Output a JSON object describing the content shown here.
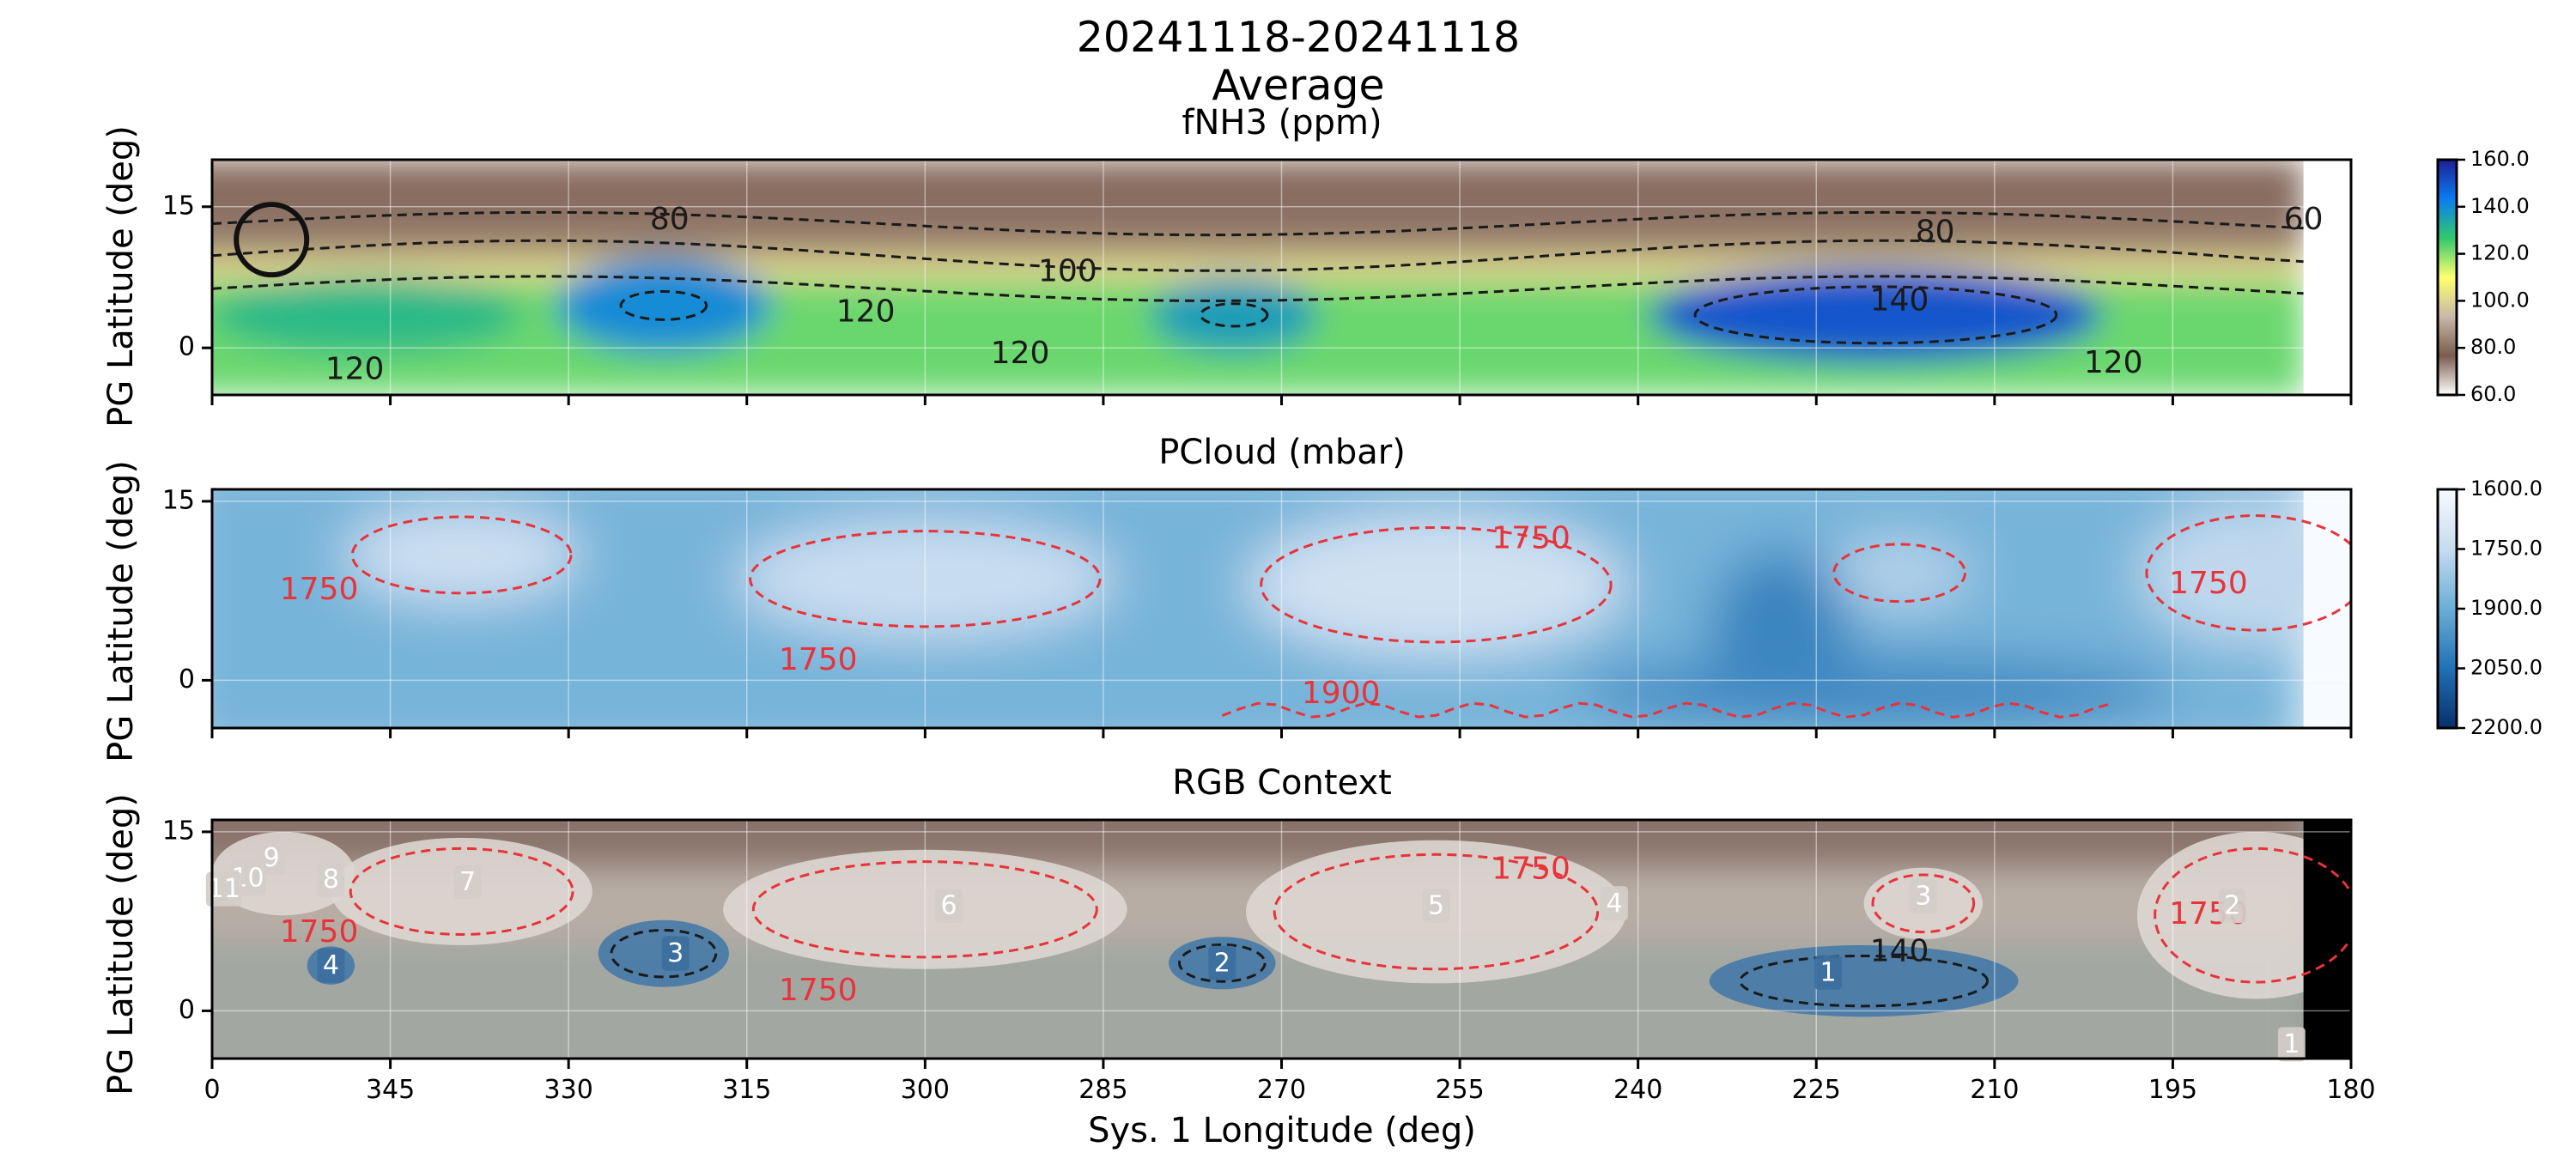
{
  "figure": {
    "suptitle_line1": "20241118-20241118",
    "suptitle_line2": "Average"
  },
  "chart_data": [
    {
      "type": "heatmap",
      "title": "fNH3 (ppm)",
      "xlabel": "",
      "ylabel": "PG Latitude (deg)",
      "xlim": [
        360,
        180
      ],
      "ylim": [
        -5,
        20
      ],
      "yticks": [
        {
          "value": 15,
          "label": "15"
        },
        {
          "value": 0,
          "label": "0"
        }
      ],
      "data_xmax_lon": 184,
      "grid": true,
      "cmap_stops": [
        "#ffffff",
        "#7a5c4d",
        "#c9b8a8",
        "#ffff6e",
        "#32c86e",
        "#0a7cf0",
        "#1e1e96"
      ],
      "colorbar": {
        "vmin": 60,
        "vmax": 160,
        "ticks": [
          "160.0",
          "140.0",
          "120.0",
          "100.0",
          "80.0",
          "60.0"
        ]
      },
      "bands": [
        {
          "lat_min": 14,
          "lat_max": 20,
          "value": 75
        },
        {
          "lat_min": 10,
          "lat_max": 14,
          "value": 82
        },
        {
          "lat_min": 7,
          "lat_max": 10,
          "value": 100
        },
        {
          "lat_min": -5,
          "lat_max": 7,
          "value": 122
        }
      ],
      "blobs": [
        {
          "lon": 322,
          "lat": 4.5,
          "r_lon": 9,
          "r_lat": 5,
          "value": 140
        },
        {
          "lon": 274,
          "lat": 3.5,
          "r_lon": 7,
          "r_lat": 4,
          "value": 136
        },
        {
          "lon": 220,
          "lat": 3.5,
          "r_lon": 19,
          "r_lat": 5,
          "value": 150
        },
        {
          "lon": 347,
          "lat": 3.5,
          "r_lon": 13,
          "r_lat": 4,
          "value": 130
        }
      ],
      "contour_labels": [
        {
          "text": "80",
          "lon": 321.5,
          "lat": 13.5,
          "color": "#1a1a1a"
        },
        {
          "text": "80",
          "lon": 215,
          "lat": 12.2,
          "color": "#1a1a1a"
        },
        {
          "text": "60",
          "lon": 184,
          "lat": 13.5,
          "color": "#1a1a1a"
        },
        {
          "text": "100",
          "lon": 288,
          "lat": 8,
          "color": "#1a1a1a"
        },
        {
          "text": "120",
          "lon": 305,
          "lat": 3.7,
          "color": "#1a1a1a"
        },
        {
          "text": "140",
          "lon": 218,
          "lat": 4.9,
          "color": "#1a1a1a"
        },
        {
          "text": "120",
          "lon": 292,
          "lat": -0.7,
          "color": "#1a1a1a"
        },
        {
          "text": "120",
          "lon": 348,
          "lat": -2.4,
          "color": "#1a1a1a"
        },
        {
          "text": "120",
          "lon": 200,
          "lat": -1.7,
          "color": "#1a1a1a"
        }
      ],
      "annotation": "circle near lon 355, lat 11.5"
    },
    {
      "type": "heatmap",
      "title": "PCloud (mbar)",
      "xlabel": "",
      "ylabel": "PG Latitude (deg)",
      "xlim": [
        360,
        180
      ],
      "ylim": [
        -4,
        16
      ],
      "yticks": [
        {
          "value": 15,
          "label": "15"
        },
        {
          "value": 0,
          "label": "0"
        }
      ],
      "data_xmax_lon": 184,
      "grid": true,
      "cmap_stops": [
        "#f7fbff",
        "#c6dbef",
        "#6baed6",
        "#2171b5",
        "#08306b"
      ],
      "colorbar": {
        "vmin": 1600,
        "vmax": 2200,
        "ticks": [
          "1600.0",
          "1750.0",
          "1900.0",
          "2050.0",
          "2200.0"
        ]
      },
      "background_value": 1880,
      "blobs": [
        {
          "lon": 339,
          "lat": 10.5,
          "r_lon": 10,
          "r_lat": 4,
          "value": 1730
        },
        {
          "lon": 300,
          "lat": 8.5,
          "r_lon": 16,
          "r_lat": 5,
          "value": 1740
        },
        {
          "lon": 257,
          "lat": 8,
          "r_lon": 16,
          "r_lat": 6,
          "value": 1720
        },
        {
          "lon": 188,
          "lat": 9,
          "r_lon": 10,
          "r_lat": 6,
          "value": 1760
        },
        {
          "lon": 218,
          "lat": 9,
          "r_lon": 6,
          "r_lat": 3,
          "value": 1780
        },
        {
          "lon": 228,
          "lat": 4,
          "r_lon": 6,
          "r_lat": 7,
          "value": 2000
        },
        {
          "lon": 220,
          "lat": -1,
          "r_lon": 25,
          "r_lat": 3,
          "value": 1990
        }
      ],
      "contour_labels": [
        {
          "text": "1750",
          "lon": 351,
          "lat": 7.5,
          "color": "#e8333a"
        },
        {
          "text": "1750",
          "lon": 309,
          "lat": 1.6,
          "color": "#e8333a"
        },
        {
          "text": "1750",
          "lon": 249,
          "lat": 11.8,
          "color": "#e8333a"
        },
        {
          "text": "1750",
          "lon": 192,
          "lat": 8,
          "color": "#e8333a"
        },
        {
          "text": "1900",
          "lon": 265,
          "lat": -1.2,
          "color": "#e8333a"
        }
      ]
    },
    {
      "type": "heatmap",
      "title": "RGB Context",
      "xlabel": "Sys. 1 Longitude (deg)",
      "ylabel": "PG Latitude (deg)",
      "xlim": [
        360,
        180
      ],
      "ylim": [
        -4,
        16
      ],
      "xticks": [
        "0",
        "345",
        "330",
        "315",
        "300",
        "285",
        "270",
        "255",
        "240",
        "225",
        "210",
        "195",
        "180"
      ],
      "yticks": [
        {
          "value": 15,
          "label": "15"
        },
        {
          "value": 0,
          "label": "0"
        }
      ],
      "data_xmax_lon": 184,
      "grid": true,
      "contour_labels": [
        {
          "text": "1750",
          "lon": 351,
          "lat": 6.5,
          "color": "#e8333a"
        },
        {
          "text": "1750",
          "lon": 309,
          "lat": 1.6,
          "color": "#e8333a"
        },
        {
          "text": "1750",
          "lon": 249,
          "lat": 11.8,
          "color": "#e8333a"
        },
        {
          "text": "1750",
          "lon": 192,
          "lat": 8,
          "color": "#e8333a"
        },
        {
          "text": "140",
          "lon": 218,
          "lat": 4.9,
          "color": "#1a1a1a"
        }
      ],
      "markers": [
        {
          "label": "1",
          "lon": 224,
          "lat": 3.2,
          "kind": "blue"
        },
        {
          "label": "2",
          "lon": 275,
          "lat": 4,
          "kind": "blue"
        },
        {
          "label": "3",
          "lon": 321,
          "lat": 4.8,
          "kind": "blue"
        },
        {
          "label": "4",
          "lon": 350,
          "lat": 3.8,
          "kind": "blue"
        },
        {
          "label": "5",
          "lon": 257,
          "lat": 8.8,
          "kind": "white"
        },
        {
          "label": "6",
          "lon": 298,
          "lat": 8.8,
          "kind": "white"
        },
        {
          "label": "7",
          "lon": 338.5,
          "lat": 10.8,
          "kind": "white"
        },
        {
          "label": "8",
          "lon": 350,
          "lat": 11,
          "kind": "white"
        },
        {
          "label": "9",
          "lon": 355,
          "lat": 12.8,
          "kind": "white"
        },
        {
          "label": "10",
          "lon": 357,
          "lat": 11.1,
          "kind": "white"
        },
        {
          "label": "11",
          "lon": 359,
          "lat": 10.2,
          "kind": "white"
        },
        {
          "label": "4",
          "lon": 242,
          "lat": 9.0,
          "kind": "white"
        },
        {
          "label": "3",
          "lon": 216,
          "lat": 9.6,
          "kind": "white"
        },
        {
          "label": "2",
          "lon": 190,
          "lat": 8.8,
          "kind": "white"
        },
        {
          "label": "1",
          "lon": 185,
          "lat": -2.8,
          "kind": "white"
        }
      ],
      "blue_patches": [
        {
          "lon": 221,
          "lat": 2.5,
          "r_lon": 13,
          "r_lat": 3
        },
        {
          "lon": 275,
          "lat": 4,
          "r_lon": 4.5,
          "r_lat": 2.2
        },
        {
          "lon": 322,
          "lat": 4.8,
          "r_lon": 5.5,
          "r_lat": 2.8
        },
        {
          "lon": 350,
          "lat": 3.8,
          "r_lon": 2,
          "r_lat": 1.6
        }
      ],
      "white_patches": [
        {
          "lon": 339,
          "lat": 10,
          "r_lon": 11,
          "r_lat": 4.5
        },
        {
          "lon": 300,
          "lat": 8.5,
          "r_lon": 17,
          "r_lat": 5
        },
        {
          "lon": 257,
          "lat": 8.3,
          "r_lon": 16,
          "r_lat": 6
        },
        {
          "lon": 188,
          "lat": 8,
          "r_lon": 10,
          "r_lat": 7
        },
        {
          "lon": 216,
          "lat": 9,
          "r_lon": 5,
          "r_lat": 3
        },
        {
          "lon": 354,
          "lat": 11.5,
          "r_lon": 6,
          "r_lat": 3.5
        }
      ]
    }
  ]
}
